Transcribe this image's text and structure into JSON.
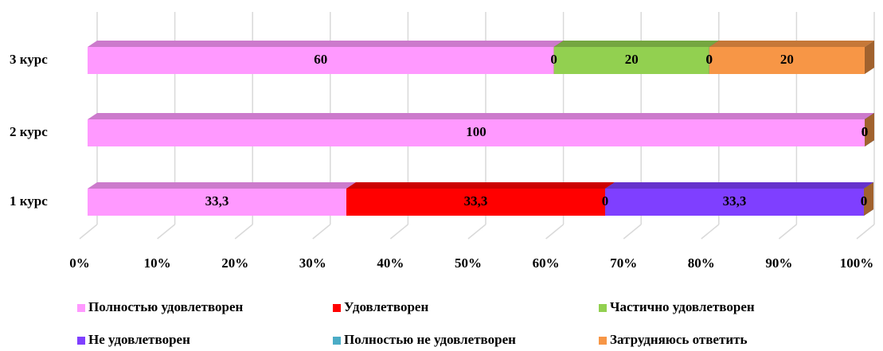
{
  "chart_data": {
    "type": "bar",
    "orientation": "horizontal",
    "stacked": "percent",
    "categories": [
      "1 курс",
      "2 курс",
      "3 курс"
    ],
    "series": [
      {
        "name": "Полностью удовлетворен",
        "color": "#ff99ff",
        "values": [
          33.3,
          100,
          60
        ],
        "value_labels": [
          "33,3",
          "100",
          "60"
        ]
      },
      {
        "name": "Удовлетворен",
        "color": "#ff0000",
        "values": [
          33.3,
          0,
          0
        ],
        "value_labels": [
          "33,3",
          "0",
          "0"
        ]
      },
      {
        "name": "Частично удовлетворен",
        "color": "#92d050",
        "values": [
          0,
          0,
          20
        ],
        "value_labels": [
          "0",
          "0",
          "20"
        ]
      },
      {
        "name": "Не удовлетворен",
        "color": "#7f3fff",
        "values": [
          33.3,
          0,
          0
        ],
        "value_labels": [
          "33,3",
          "0",
          "0"
        ]
      },
      {
        "name": "Полностью не удовлетворен",
        "color": "#4bacc6",
        "values": [
          0,
          0,
          0
        ],
        "value_labels": [
          "0",
          "0",
          "0"
        ]
      },
      {
        "name": "Затрудняюсь ответить",
        "color": "#f79646",
        "values": [
          0,
          0,
          20
        ],
        "value_labels": [
          "0",
          "0",
          "20"
        ]
      }
    ],
    "xlim": [
      0,
      100
    ],
    "xticks": [
      {
        "value": 0,
        "label": "0%"
      },
      {
        "value": 10,
        "label": "10%"
      },
      {
        "value": 20,
        "label": "20%"
      },
      {
        "value": 30,
        "label": "30%"
      },
      {
        "value": 40,
        "label": "40%"
      },
      {
        "value": 50,
        "label": "50%"
      },
      {
        "value": 60,
        "label": "60%"
      },
      {
        "value": 70,
        "label": "70%"
      },
      {
        "value": 80,
        "label": "80%"
      },
      {
        "value": 90,
        "label": "90%"
      },
      {
        "value": 100,
        "label": "100%"
      }
    ],
    "grid": true,
    "legend": "bottom"
  }
}
